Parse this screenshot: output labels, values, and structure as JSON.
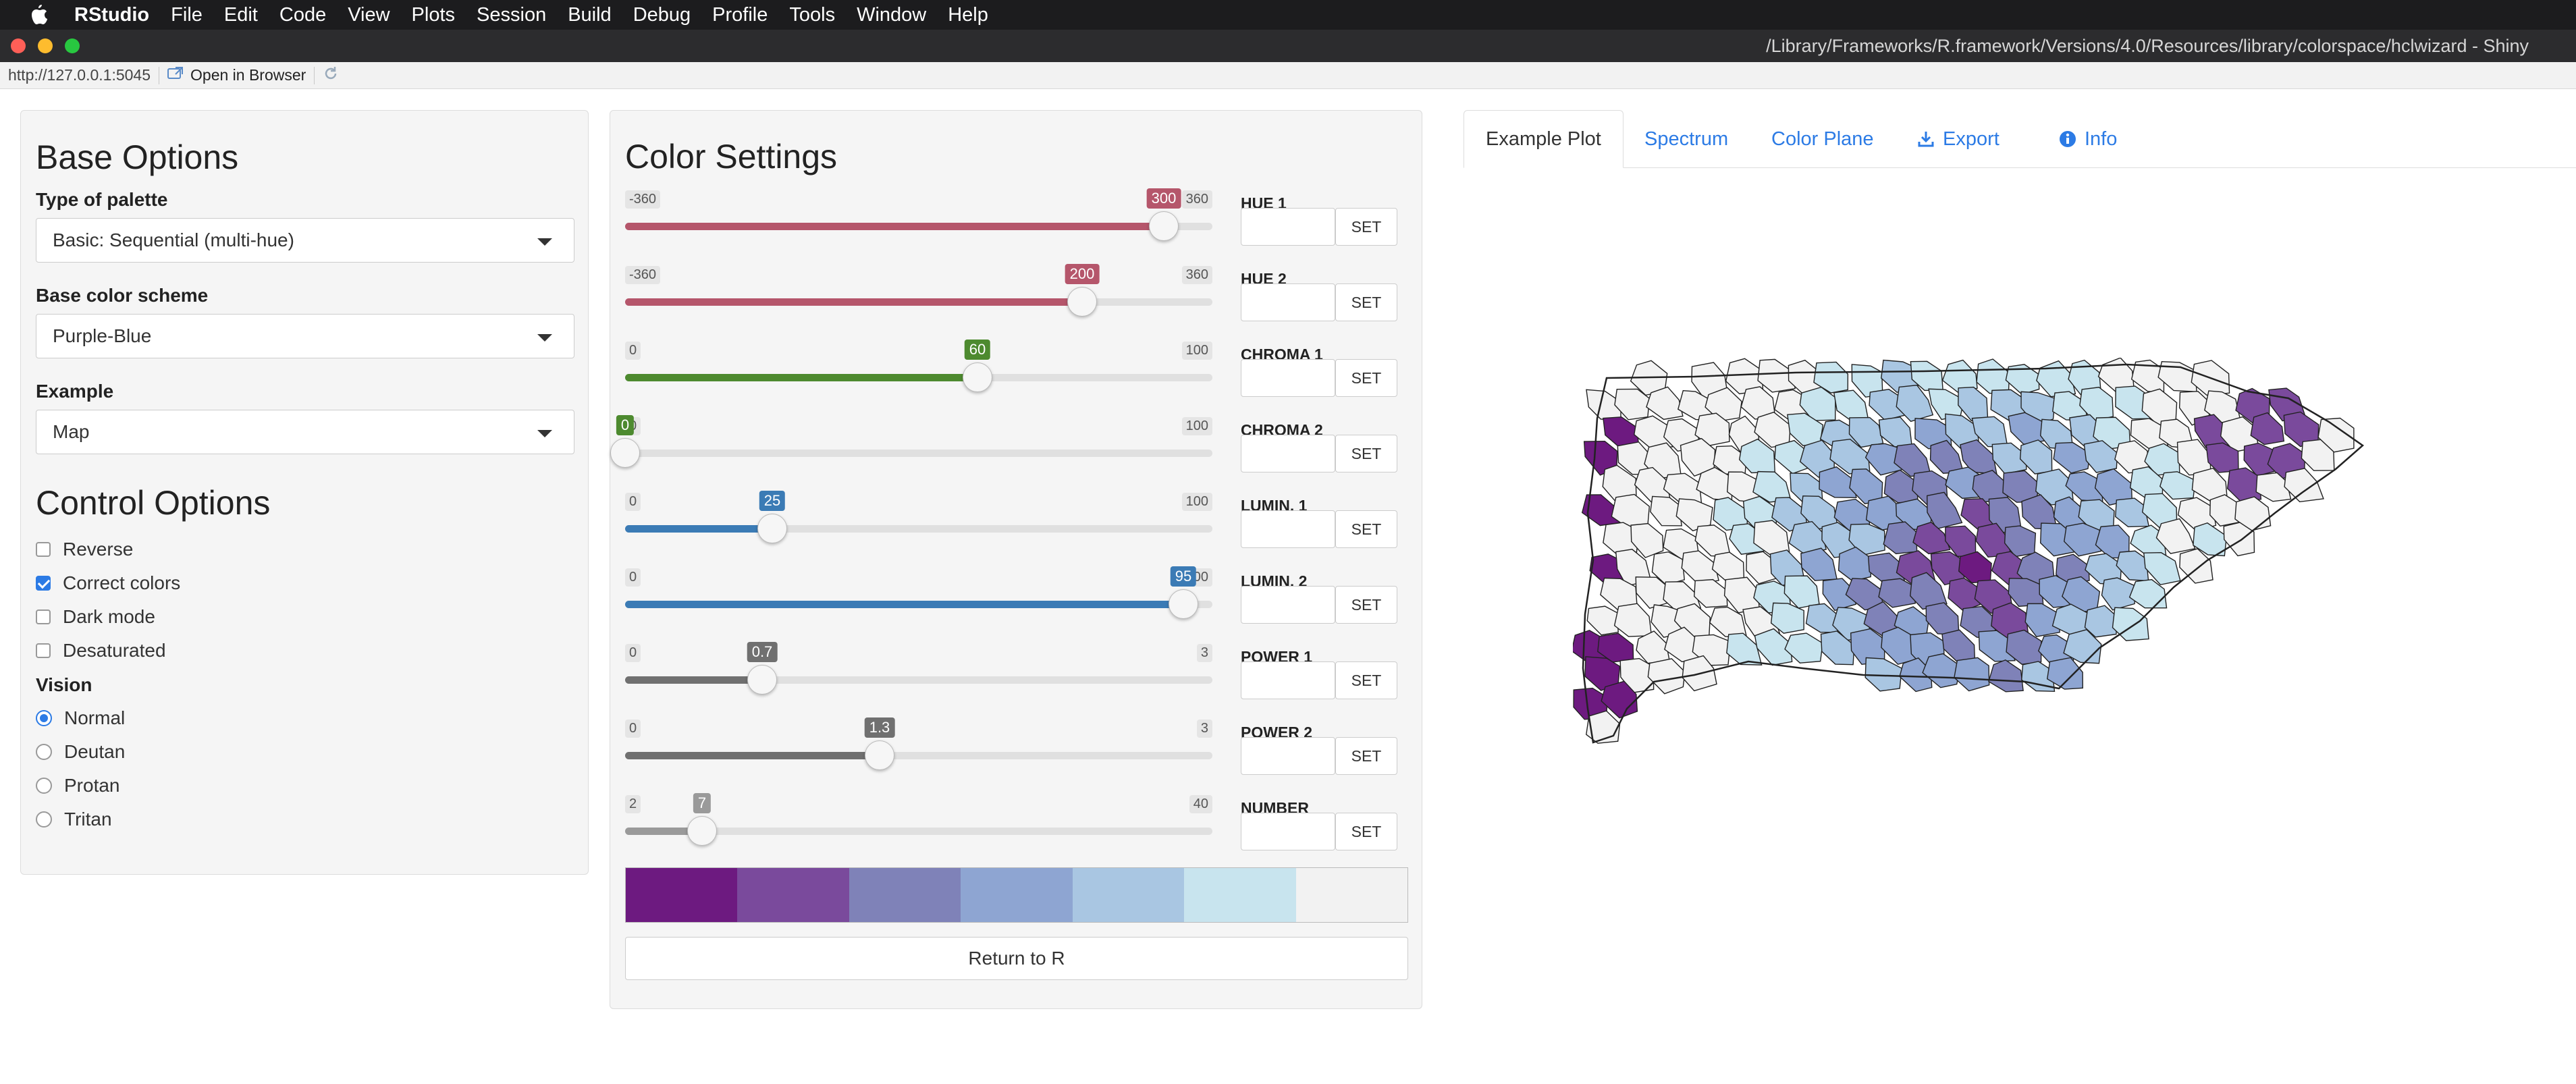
{
  "menubar": {
    "app": "RStudio",
    "items": [
      "File",
      "Edit",
      "Code",
      "View",
      "Plots",
      "Session",
      "Build",
      "Debug",
      "Profile",
      "Tools",
      "Window",
      "Help"
    ]
  },
  "window": {
    "title": "/Library/Frameworks/R.framework/Versions/4.0/Resources/library/colorspace/hclwizard - Shiny"
  },
  "urlbar": {
    "url": "http://127.0.0.1:5045",
    "open_in_browser": "Open in Browser"
  },
  "base_options": {
    "heading": "Base Options",
    "type_label": "Type of palette",
    "type_value": "Basic: Sequential (multi-hue)",
    "scheme_label": "Base color scheme",
    "scheme_value": "Purple-Blue",
    "example_label": "Example",
    "example_value": "Map"
  },
  "control_options": {
    "heading": "Control Options",
    "checkboxes": [
      {
        "label": "Reverse",
        "checked": false
      },
      {
        "label": "Correct colors",
        "checked": true
      },
      {
        "label": "Dark mode",
        "checked": false
      },
      {
        "label": "Desaturated",
        "checked": false
      }
    ],
    "vision_label": "Vision",
    "vision": [
      {
        "label": "Normal",
        "checked": true
      },
      {
        "label": "Deutan",
        "checked": false
      },
      {
        "label": "Protan",
        "checked": false
      },
      {
        "label": "Tritan",
        "checked": false
      }
    ]
  },
  "color_settings": {
    "heading": "Color Settings",
    "set_label": "SET",
    "sliders": [
      {
        "label": "HUE 1",
        "min": -360,
        "max": 360,
        "value": 300,
        "min_label": "-360",
        "max_label": "360",
        "value_label": "300",
        "color": "#b5566b"
      },
      {
        "label": "HUE 2",
        "min": -360,
        "max": 360,
        "value": 200,
        "min_label": "-360",
        "max_label": "360",
        "value_label": "200",
        "color": "#b5566b"
      },
      {
        "label": "CHROMA 1",
        "min": 0,
        "max": 100,
        "value": 60,
        "min_label": "0",
        "max_label": "100",
        "value_label": "60",
        "color": "#4d8a2f"
      },
      {
        "label": "CHROMA 2",
        "min": 0,
        "max": 100,
        "value": 0,
        "min_label": "0",
        "max_label": "100",
        "value_label": "0",
        "color": "#4d8a2f"
      },
      {
        "label": "LUMIN. 1",
        "min": 0,
        "max": 100,
        "value": 25,
        "min_label": "0",
        "max_label": "100",
        "value_label": "25",
        "color": "#3b7bb5"
      },
      {
        "label": "LUMIN. 2",
        "min": 0,
        "max": 100,
        "value": 95,
        "min_label": "0",
        "max_label": "100",
        "value_label": "95",
        "color": "#3b7bb5"
      },
      {
        "label": "POWER 1",
        "min": 0,
        "max": 3,
        "value": 0.7,
        "min_label": "0",
        "max_label": "3",
        "value_label": "0.7",
        "color": "#707070"
      },
      {
        "label": "POWER 2",
        "min": 0,
        "max": 3,
        "value": 1.3,
        "min_label": "0",
        "max_label": "3",
        "value_label": "1.3",
        "color": "#707070"
      },
      {
        "label": "NUMBER",
        "min": 2,
        "max": 40,
        "value": 7,
        "min_label": "2",
        "max_label": "40",
        "value_label": "7",
        "color": "#9a9a9a"
      }
    ],
    "palette": [
      "#6d1a80",
      "#7a4a9c",
      "#7f82b8",
      "#8ea5d2",
      "#a9c6e2",
      "#c8e4ee",
      "#f2f2f2"
    ],
    "return_label": "Return to R"
  },
  "tabs": [
    {
      "label": "Example Plot",
      "icon": "",
      "active": true
    },
    {
      "label": "Spectrum",
      "icon": "",
      "active": false
    },
    {
      "label": "Color Plane",
      "icon": "",
      "active": false
    },
    {
      "label": "Export",
      "icon": "download-icon",
      "active": false
    },
    {
      "label": "Info",
      "icon": "info-icon",
      "active": false
    }
  ]
}
